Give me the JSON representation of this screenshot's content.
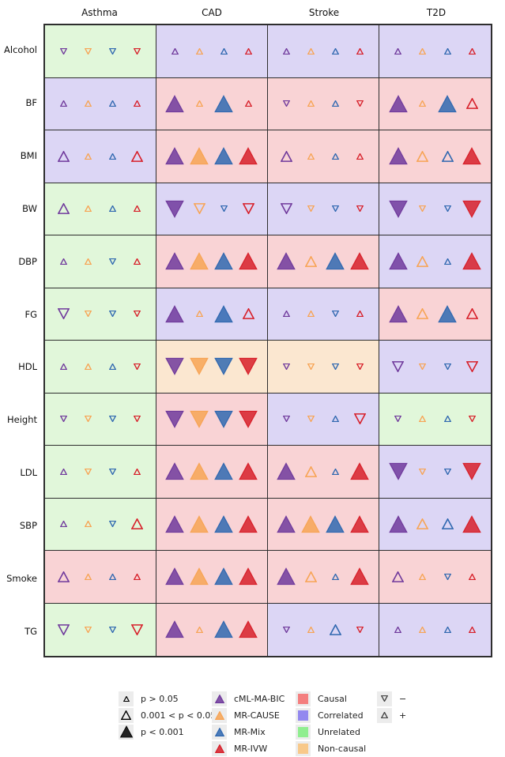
{
  "chart_data": {
    "type": "heatmap",
    "title": "",
    "description": "Grid of Mendelian randomization results: triangles per method in each exposure-outcome cell; triangle size = p-value band, direction = effect sign, cell background = causal category",
    "columns": [
      "Asthma",
      "CAD",
      "Stroke",
      "T2D"
    ],
    "rows": [
      "Alcohol",
      "BF",
      "BMI",
      "BW",
      "DBP",
      "FG",
      "HDL",
      "Height",
      "LDL",
      "SBP",
      "Smoke",
      "TG"
    ],
    "method_order": [
      "cml",
      "cause",
      "mix",
      "ivw"
    ],
    "colors": {
      "background": {
        "C": "#f9d3d5",
        "R": "#dcd6f5",
        "U": "#e1f7da",
        "N": "#fbe7d0"
      },
      "methods": {
        "cml": "#703a9c",
        "cause": "#f7a455",
        "mix": "#3068b0",
        "ivw": "#d7202a"
      },
      "grid_line": "#2e2e2e",
      "legend_key_bg": "#ececec",
      "pvalue_large": "#000000"
    },
    "cells": [
      [
        {
          "bg": "U",
          "t": [
            "sd",
            "sd",
            "sd",
            "sd"
          ]
        },
        {
          "bg": "R",
          "t": [
            "su",
            "su",
            "su",
            "su"
          ]
        },
        {
          "bg": "R",
          "t": [
            "su",
            "su",
            "su",
            "su"
          ]
        },
        {
          "bg": "R",
          "t": [
            "su",
            "su",
            "su",
            "su"
          ]
        }
      ],
      [
        {
          "bg": "R",
          "t": [
            "su",
            "su",
            "su",
            "su"
          ]
        },
        {
          "bg": "C",
          "t": [
            "lu",
            "su",
            "lu",
            "su"
          ]
        },
        {
          "bg": "C",
          "t": [
            "sd",
            "su",
            "su",
            "sd"
          ]
        },
        {
          "bg": "C",
          "t": [
            "lu",
            "su",
            "lu",
            "mu"
          ]
        }
      ],
      [
        {
          "bg": "R",
          "t": [
            "mu",
            "su",
            "su",
            "mu"
          ]
        },
        {
          "bg": "C",
          "t": [
            "lu",
            "lu",
            "lu",
            "lu"
          ]
        },
        {
          "bg": "C",
          "t": [
            "mu",
            "su",
            "su",
            "su"
          ]
        },
        {
          "bg": "C",
          "t": [
            "lu",
            "mu",
            "mu",
            "lu"
          ]
        }
      ],
      [
        {
          "bg": "U",
          "t": [
            "mu",
            "su",
            "su",
            "su"
          ]
        },
        {
          "bg": "R",
          "t": [
            "ld",
            "md",
            "sd",
            "md"
          ]
        },
        {
          "bg": "R",
          "t": [
            "md",
            "sd",
            "sd",
            "sd"
          ]
        },
        {
          "bg": "R",
          "t": [
            "ld",
            "sd",
            "sd",
            "ld"
          ]
        }
      ],
      [
        {
          "bg": "U",
          "t": [
            "su",
            "su",
            "sd",
            "su"
          ]
        },
        {
          "bg": "C",
          "t": [
            "lu",
            "lu",
            "lu",
            "lu"
          ]
        },
        {
          "bg": "C",
          "t": [
            "lu",
            "mu",
            "lu",
            "lu"
          ]
        },
        {
          "bg": "R",
          "t": [
            "lu",
            "mu",
            "su",
            "lu"
          ]
        }
      ],
      [
        {
          "bg": "U",
          "t": [
            "md",
            "sd",
            "sd",
            "sd"
          ]
        },
        {
          "bg": "R",
          "t": [
            "lu",
            "su",
            "lu",
            "mu"
          ]
        },
        {
          "bg": "R",
          "t": [
            "su",
            "su",
            "sd",
            "su"
          ]
        },
        {
          "bg": "C",
          "t": [
            "lu",
            "mu",
            "lu",
            "mu"
          ]
        }
      ],
      [
        {
          "bg": "U",
          "t": [
            "su",
            "su",
            "su",
            "sd"
          ]
        },
        {
          "bg": "N",
          "t": [
            "ld",
            "ld",
            "ld",
            "ld"
          ]
        },
        {
          "bg": "N",
          "t": [
            "sd",
            "sd",
            "sd",
            "sd"
          ]
        },
        {
          "bg": "R",
          "t": [
            "md",
            "sd",
            "sd",
            "md"
          ]
        }
      ],
      [
        {
          "bg": "U",
          "t": [
            "sd",
            "sd",
            "sd",
            "sd"
          ]
        },
        {
          "bg": "C",
          "t": [
            "ld",
            "ld",
            "ld",
            "ld"
          ]
        },
        {
          "bg": "R",
          "t": [
            "sd",
            "sd",
            "su",
            "md"
          ]
        },
        {
          "bg": "U",
          "t": [
            "sd",
            "su",
            "su",
            "sd"
          ]
        }
      ],
      [
        {
          "bg": "U",
          "t": [
            "su",
            "sd",
            "sd",
            "su"
          ]
        },
        {
          "bg": "C",
          "t": [
            "lu",
            "lu",
            "lu",
            "lu"
          ]
        },
        {
          "bg": "C",
          "t": [
            "lu",
            "mu",
            "su",
            "lu"
          ]
        },
        {
          "bg": "R",
          "t": [
            "ld",
            "sd",
            "sd",
            "ld"
          ]
        }
      ],
      [
        {
          "bg": "U",
          "t": [
            "su",
            "su",
            "sd",
            "mu"
          ]
        },
        {
          "bg": "C",
          "t": [
            "lu",
            "lu",
            "lu",
            "lu"
          ]
        },
        {
          "bg": "C",
          "t": [
            "lu",
            "lu",
            "lu",
            "lu"
          ]
        },
        {
          "bg": "R",
          "t": [
            "lu",
            "mu",
            "mu",
            "lu"
          ]
        }
      ],
      [
        {
          "bg": "C",
          "t": [
            "mu",
            "su",
            "su",
            "su"
          ]
        },
        {
          "bg": "C",
          "t": [
            "lu",
            "lu",
            "lu",
            "lu"
          ]
        },
        {
          "bg": "C",
          "t": [
            "lu",
            "mu",
            "su",
            "lu"
          ]
        },
        {
          "bg": "C",
          "t": [
            "mu",
            "su",
            "sd",
            "su"
          ]
        }
      ],
      [
        {
          "bg": "U",
          "t": [
            "md",
            "sd",
            "sd",
            "md"
          ]
        },
        {
          "bg": "C",
          "t": [
            "lu",
            "su",
            "lu",
            "lu"
          ]
        },
        {
          "bg": "R",
          "t": [
            "sd",
            "su",
            "mu",
            "sd"
          ]
        },
        {
          "bg": "R",
          "t": [
            "su",
            "su",
            "su",
            "su"
          ]
        }
      ]
    ],
    "legend": {
      "pvalue": [
        {
          "size": "s",
          "label": "p > 0.05"
        },
        {
          "size": "m",
          "label": "0.001 < p < 0.05"
        },
        {
          "size": "l",
          "label": "p < 0.001"
        }
      ],
      "methods": [
        {
          "key": "cml",
          "label": "cML-MA-BIC"
        },
        {
          "key": "cause",
          "label": "MR-CAUSE"
        },
        {
          "key": "mix",
          "label": "MR-Mix"
        },
        {
          "key": "ivw",
          "label": "MR-IVW"
        }
      ],
      "categories": [
        {
          "key": "C",
          "label": "Causal",
          "color": "#f47f7f"
        },
        {
          "key": "R",
          "label": "Correlated",
          "color": "#9388ef"
        },
        {
          "key": "U",
          "label": "Unrelated",
          "color": "#90ee90"
        },
        {
          "key": "N",
          "label": "Non-causal",
          "color": "#f8c98a"
        }
      ],
      "signs": [
        {
          "dir": "d",
          "label": "−"
        },
        {
          "dir": "u",
          "label": "+"
        }
      ]
    }
  }
}
